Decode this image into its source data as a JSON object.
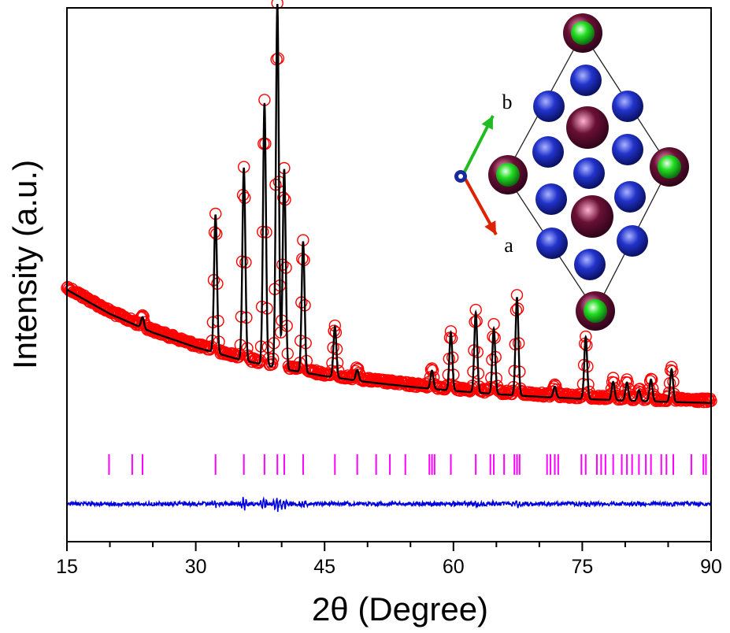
{
  "chart_data": {
    "type": "scatter",
    "title": "",
    "xlabel": "2θ (Degree)",
    "ylabel": "Intensity (a.u.)",
    "xlim": [
      15,
      90
    ],
    "x_ticks": [
      15,
      30,
      45,
      60,
      75,
      90
    ],
    "x_tick_labels": [
      "15",
      "30",
      "45",
      "60",
      "75",
      "90"
    ],
    "y_ticks_shown": false,
    "colors": {
      "observed": "#ff0000",
      "calculated": "#000000",
      "bragg": "#ff00ff",
      "difference": "#0000dd",
      "a_axis": "#dd2200",
      "b_axis": "#22bb22",
      "atom_green": "#22dd22",
      "atom_maroon": "#6a1035",
      "atom_blue": "#2233cc"
    },
    "background_points": [
      [
        15,
        100
      ],
      [
        20,
        82
      ],
      [
        25,
        68
      ],
      [
        30,
        57
      ],
      [
        35,
        48
      ],
      [
        40,
        41
      ],
      [
        45,
        35.5
      ],
      [
        50,
        31
      ],
      [
        55,
        27.5
      ],
      [
        60,
        24.5
      ],
      [
        65,
        22
      ],
      [
        70,
        20
      ],
      [
        75,
        18.5
      ],
      [
        80,
        17.2
      ],
      [
        85,
        16.2
      ],
      [
        90,
        15.4
      ]
    ],
    "peaks": [
      {
        "pos": 23.8,
        "height": 3
      },
      {
        "pos": 32.3,
        "height": 38
      },
      {
        "pos": 35.6,
        "height": 53
      },
      {
        "pos": 38.0,
        "height": 72
      },
      {
        "pos": 39.5,
        "height": 100
      },
      {
        "pos": 40.3,
        "height": 55
      },
      {
        "pos": 42.5,
        "height": 36
      },
      {
        "pos": 46.2,
        "height": 14
      },
      {
        "pos": 48.8,
        "height": 3
      },
      {
        "pos": 57.5,
        "height": 5
      },
      {
        "pos": 59.7,
        "height": 16
      },
      {
        "pos": 62.6,
        "height": 22
      },
      {
        "pos": 64.7,
        "height": 18
      },
      {
        "pos": 67.4,
        "height": 27
      },
      {
        "pos": 71.8,
        "height": 3
      },
      {
        "pos": 75.4,
        "height": 17
      },
      {
        "pos": 78.6,
        "height": 5
      },
      {
        "pos": 80.2,
        "height": 5
      },
      {
        "pos": 81.6,
        "height": 3
      },
      {
        "pos": 83.0,
        "height": 6
      },
      {
        "pos": 85.4,
        "height": 9
      }
    ],
    "bragg_positions": [
      19.9,
      22.6,
      23.8,
      32.3,
      35.6,
      38.0,
      39.5,
      40.3,
      42.5,
      46.2,
      48.8,
      51.0,
      52.6,
      54.4,
      57.2,
      57.5,
      57.8,
      59.7,
      62.6,
      64.3,
      64.7,
      65.9,
      67.1,
      67.4,
      67.7,
      70.9,
      71.3,
      71.8,
      72.2,
      74.9,
      75.4,
      76.7,
      77.2,
      77.7,
      78.6,
      79.6,
      80.2,
      80.8,
      81.6,
      82.4,
      83.0,
      84.2,
      84.8,
      85.6,
      87.7,
      89.1,
      89.4
    ],
    "legend": [],
    "inset": {
      "type": "crystal-structure",
      "axis_labels": [
        "b",
        "a"
      ]
    }
  }
}
